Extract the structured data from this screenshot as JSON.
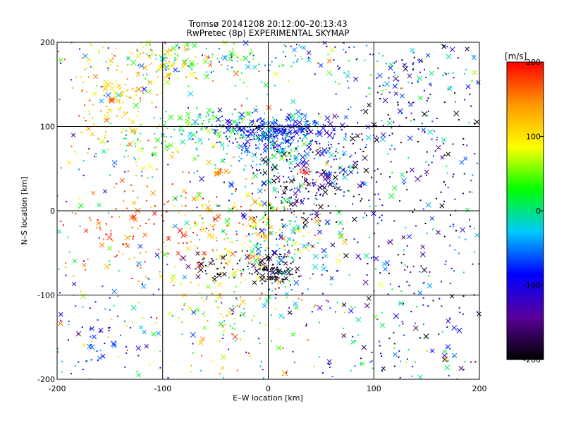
{
  "chart_data": {
    "type": "scatter",
    "title": "Tromsø 20141208 20:12:00–20:13:43",
    "subtitle": "RwPretec (8p) EXPERIMENTAL SKYMAP",
    "xlabel": "E–W location [km]",
    "ylabel": "N–S location [km]",
    "xlim": [
      -200,
      200
    ],
    "ylim": [
      -200,
      200
    ],
    "xticks": [
      "-200",
      "-100",
      "0",
      "100",
      "200"
    ],
    "yticks": [
      "-200",
      "-100",
      "0",
      "100",
      "200"
    ],
    "grid": true,
    "colorbar": {
      "unit": "[m/s]",
      "range": [
        -200,
        200
      ],
      "ticks": [
        "-200",
        "-100",
        "0",
        "100",
        "200"
      ],
      "colors": [
        "#000000",
        "#5a009c",
        "#0000ff",
        "#00c8ff",
        "#00ff00",
        "#ffff00",
        "#ff9900",
        "#ff0000"
      ]
    },
    "clusters": [
      {
        "x": 0,
        "y": 95,
        "sx": 28,
        "sy": 9,
        "n": 260,
        "v": -90,
        "vs": 20
      },
      {
        "x": 10,
        "y": 70,
        "sx": 30,
        "sy": 22,
        "n": 200,
        "v": -30,
        "vs": 40
      },
      {
        "x": -55,
        "y": 100,
        "sx": 25,
        "sy": 10,
        "n": 90,
        "v": 10,
        "vs": 30
      },
      {
        "x": -150,
        "y": 140,
        "sx": 18,
        "sy": 30,
        "n": 110,
        "v": 120,
        "vs": 30
      },
      {
        "x": -100,
        "y": 180,
        "sx": 18,
        "sy": 15,
        "n": 70,
        "v": 100,
        "vs": 30
      },
      {
        "x": -120,
        "y": 80,
        "sx": 30,
        "sy": 20,
        "n": 70,
        "v": 60,
        "vs": 60
      },
      {
        "x": -60,
        "y": 180,
        "sx": 40,
        "sy": 15,
        "n": 80,
        "v": 30,
        "vs": 50
      },
      {
        "x": -5,
        "y": 180,
        "sx": 50,
        "sy": 15,
        "n": 60,
        "v": -30,
        "vs": 60
      },
      {
        "x": -30,
        "y": -30,
        "sx": 40,
        "sy": 30,
        "n": 220,
        "v": 110,
        "vs": 60
      },
      {
        "x": -120,
        "y": -20,
        "sx": 35,
        "sy": 30,
        "n": 100,
        "v": 180,
        "vs": 30
      },
      {
        "x": 5,
        "y": -70,
        "sx": 12,
        "sy": 10,
        "n": 90,
        "v": -190,
        "vs": 15
      },
      {
        "x": -50,
        "y": -65,
        "sx": 15,
        "sy": 8,
        "n": 35,
        "v": -185,
        "vs": 20
      },
      {
        "x": 10,
        "y": -40,
        "sx": 20,
        "sy": 30,
        "n": 120,
        "v": -40,
        "vs": 60
      },
      {
        "x": 30,
        "y": 30,
        "sx": 25,
        "sy": 25,
        "n": 130,
        "v": -170,
        "vs": 40
      },
      {
        "x": -40,
        "y": -120,
        "sx": 30,
        "sy": 25,
        "n": 90,
        "v": 60,
        "vs": 70
      },
      {
        "x": -150,
        "y": -160,
        "sx": 30,
        "sy": 25,
        "n": 60,
        "v": -80,
        "vs": 40
      },
      {
        "x": 140,
        "y": 100,
        "sx": 40,
        "sy": 60,
        "n": 110,
        "v": -150,
        "vs": 70
      },
      {
        "x": 110,
        "y": -50,
        "sx": 50,
        "sy": 70,
        "n": 140,
        "v": -90,
        "vs": 80
      },
      {
        "x": 120,
        "y": 160,
        "sx": 50,
        "sy": 30,
        "n": 80,
        "v": -60,
        "vs": 80
      },
      {
        "x": 60,
        "y": 60,
        "sx": 35,
        "sy": 30,
        "n": 80,
        "v": -120,
        "vs": 60
      },
      {
        "x": 130,
        "y": -170,
        "sx": 50,
        "sy": 20,
        "n": 40,
        "v": -40,
        "vs": 80
      },
      {
        "x": 35,
        "y": 47,
        "sx": 4,
        "sy": 3,
        "n": 14,
        "v": 200,
        "vs": 5
      },
      {
        "x": -45,
        "y": 45,
        "sx": 4,
        "sy": 3,
        "n": 10,
        "v": 150,
        "vs": 20
      }
    ],
    "background_points": 600,
    "marker_types": [
      "x",
      "dot"
    ]
  }
}
